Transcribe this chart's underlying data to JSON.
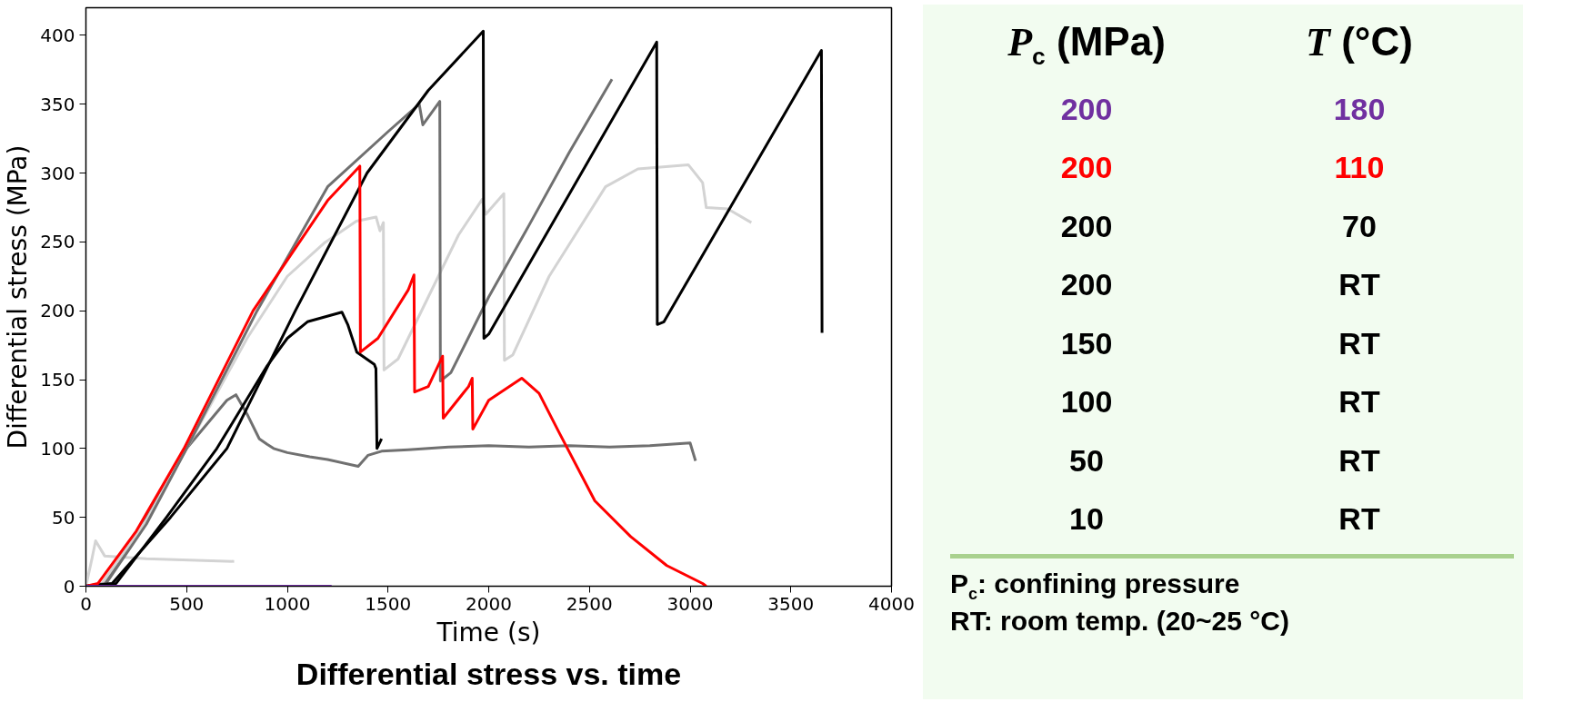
{
  "chart_data": {
    "type": "line",
    "title": "Differential stress vs. time",
    "xlabel": "Time (s)",
    "ylabel": "Differential stress (MPa)",
    "xlim": [
      0,
      4000
    ],
    "ylim": [
      0,
      420
    ],
    "xticks": [
      0,
      500,
      1000,
      1500,
      2000,
      2500,
      3000,
      3500,
      4000
    ],
    "yticks": [
      0,
      50,
      100,
      150,
      200,
      250,
      300,
      350,
      400
    ],
    "grid": false,
    "annotations": [
      "P$_{c}$ (MPa)",
      "T (°C)",
      "200",
      "180",
      "200",
      "110",
      "200",
      "70",
      "200",
      "RT",
      "150",
      "RT",
      "100",
      "RT",
      "50",
      "RT",
      "10",
      "RT",
      "P$_{c}$: confining pressure",
      "RT: room temp. (20~25 °C)"
    ],
    "series": [
      {
        "color": "#d3d3d3",
        "x": [
          0,
          30,
          48,
          93,
          300,
          736
        ],
        "values": [
          0,
          20,
          33,
          22,
          20,
          18
        ]
      },
      {
        "color": "#707070",
        "x": [
          0,
          90,
          300,
          500,
          700,
          745,
          800,
          861,
          900,
          932,
          1000,
          1111,
          1200,
          1352,
          1400,
          1468,
          1600,
          1800,
          2000,
          2200,
          2400,
          2600,
          2800,
          3000,
          3027
        ],
        "values": [
          0,
          2,
          50,
          100,
          135,
          139,
          125,
          107,
          103,
          100,
          97,
          94,
          92,
          87,
          95,
          98,
          99,
          101,
          102,
          101,
          102,
          101,
          102,
          104,
          91
        ]
      },
      {
        "color": "#d3d3d3",
        "x": [
          0,
          80,
          300,
          500,
          800,
          1000,
          1182,
          1343,
          1441,
          1460,
          1477,
          1480,
          1550,
          1700,
          1850,
          1968,
          1985,
          2075,
          2078,
          2120,
          2300,
          2580,
          2741,
          2991,
          3062,
          3080,
          3187,
          3304
        ],
        "values": [
          0,
          2,
          48,
          100,
          180,
          225,
          249,
          265,
          268,
          258,
          264,
          157,
          165,
          210,
          255,
          281,
          270,
          285,
          164,
          168,
          225,
          290,
          303,
          306,
          293,
          275,
          274,
          264
        ]
      },
      {
        "color": "#707070",
        "x": [
          0,
          100,
          300,
          500,
          850,
          1200,
          1500,
          1655,
          1673,
          1757,
          1760,
          1812,
          2000,
          2200,
          2400,
          2612
        ],
        "values": [
          0,
          2,
          45,
          100,
          200,
          290,
          330,
          350,
          335,
          352,
          149,
          155,
          210,
          262,
          315,
          368
        ]
      },
      {
        "color": "#000000",
        "x": [
          0,
          150,
          400,
          650,
          900,
          1000,
          1100,
          1271,
          1300,
          1345,
          1432,
          1440,
          1445,
          1468
        ],
        "values": [
          0,
          2,
          50,
          100,
          160,
          180,
          192,
          199,
          190,
          170,
          161,
          158,
          100,
          107
        ]
      },
      {
        "color": "#000000",
        "x": [
          0,
          130,
          420,
          700,
          1040,
          1396,
          1700,
          1973,
          1976,
          2000,
          2834,
          2837,
          2870,
          3652,
          3655
        ],
        "values": [
          0,
          2,
          50,
          100,
          200,
          300,
          360,
          403,
          180,
          183,
          395,
          190,
          192,
          389,
          184
        ]
      },
      {
        "color": "#ff0000",
        "x": [
          0,
          60,
          250,
          487,
          830,
          1200,
          1360,
          1363,
          1450,
          1600,
          1629,
          1632,
          1700,
          1771,
          1774,
          1900,
          1918,
          1921,
          2000,
          2164,
          2250,
          2348,
          2527,
          2705,
          2884,
          3062,
          3080
        ],
        "values": [
          0,
          2,
          40,
          100,
          200,
          280,
          305,
          170,
          180,
          215,
          226,
          141,
          145,
          167,
          122,
          145,
          151,
          114,
          135,
          151,
          140,
          112,
          62,
          36,
          15,
          2,
          0
        ]
      },
      {
        "color": "#7030a0",
        "x": [
          0,
          1220
        ],
        "values": [
          0,
          0
        ]
      }
    ]
  }
}
